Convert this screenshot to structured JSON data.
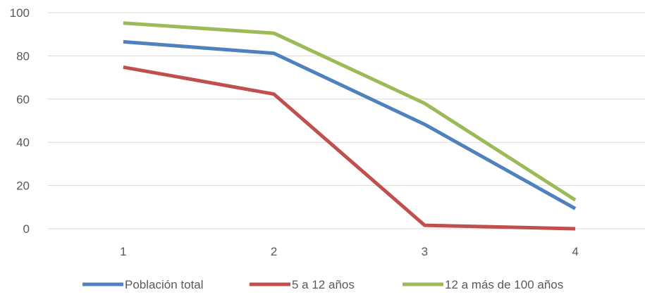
{
  "chart_data": {
    "type": "line",
    "title": "",
    "xlabel": "",
    "ylabel": "",
    "categories": [
      "1",
      "2",
      "3",
      "4"
    ],
    "ylim": [
      0,
      100
    ],
    "yticks": [
      "0",
      "20",
      "40",
      "60",
      "80",
      "100"
    ],
    "grid": true,
    "legend_position": "bottom",
    "series": [
      {
        "name": "Población total",
        "color": "#4f81bd",
        "values": [
          86.5,
          81.2,
          48.3,
          9.3
        ]
      },
      {
        "name": "5 a 12 años",
        "color": "#c0504d",
        "values": [
          74.8,
          62.3,
          1.6,
          0.0
        ]
      },
      {
        "name": "12 a más de 100 años",
        "color": "#9bbb59",
        "values": [
          95.2,
          90.5,
          58.0,
          13.3
        ]
      }
    ]
  }
}
